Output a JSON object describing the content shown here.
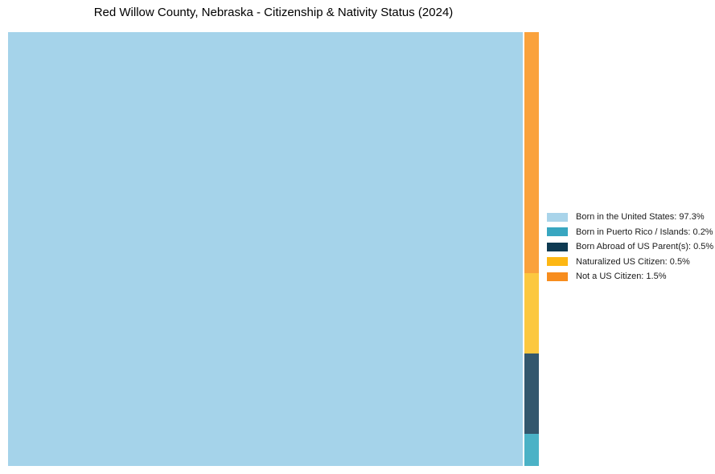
{
  "chart_data": {
    "type": "treemap",
    "title": "Red Willow County, Nebraska - Citizenship & Nativity Status (2024)",
    "legend_position": "right",
    "total_percent": 100,
    "layout_hint": "single large rect for dominant category at left; remaining categories stacked top-to-bottom in a thin right column in reverse series order",
    "series": [
      {
        "name": "Born in the United States",
        "value": 97.3,
        "legend_label": "Born in the United States: 97.3%",
        "legend_color": "#A9D4EA",
        "chart_color": "#A5D3EA"
      },
      {
        "name": "Born in Puerto Rico / Islands",
        "value": 0.2,
        "legend_label": "Born in Puerto Rico / Islands: 0.2%",
        "legend_color": "#38A6C0",
        "chart_color": "#4BB2C6"
      },
      {
        "name": "Born Abroad of US Parent(s)",
        "value": 0.5,
        "legend_label": "Born Abroad of US Parent(s): 0.5%",
        "legend_color": "#0E3A52",
        "chart_color": "#33576D"
      },
      {
        "name": "Naturalized US Citizen",
        "value": 0.5,
        "legend_label": "Naturalized US Citizen: 0.5%",
        "legend_color": "#FDB713",
        "chart_color": "#FCC840"
      },
      {
        "name": "Not a US Citizen",
        "value": 1.5,
        "legend_label": "Not a US Citizen: 1.5%",
        "legend_color": "#F78D1E",
        "chart_color": "#FAA23C"
      }
    ]
  }
}
